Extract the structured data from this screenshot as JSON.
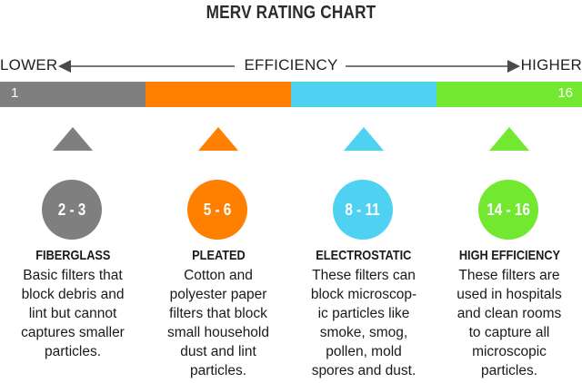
{
  "title": "MERV RATING CHART",
  "efficiency": {
    "lower_label": "LOWER",
    "center_label": "EFFICIENCY",
    "higher_label": "HIGHER"
  },
  "bar": {
    "min_label": "1",
    "max_label": "16",
    "segment_colors": [
      "#7f7f7f",
      "#ff7f00",
      "#4fd2f2",
      "#73e830"
    ]
  },
  "categories": [
    {
      "range": "2 - 3",
      "name": "FIBERGLASS",
      "color": "#7f7f7f",
      "description": [
        "Basic filters that",
        "block debris and",
        "lint but cannot",
        "captures smaller",
        "particles."
      ]
    },
    {
      "range": "5 - 6",
      "name": "PLEATED",
      "color": "#ff7f00",
      "description": [
        "Cotton and",
        "polyester paper",
        "filters that block",
        "small household",
        "dust and lint",
        "particles."
      ]
    },
    {
      "range": "8 - 11",
      "name": "ELECTROSTATIC",
      "color": "#4fd2f2",
      "description": [
        "These filters can",
        "block microscop-",
        "ic particles like",
        "smoke, smog,",
        "pollen, mold",
        "spores and dust."
      ]
    },
    {
      "range": "14 - 16",
      "name": "HIGH EFFICIENCY",
      "color": "#73e830",
      "description": [
        "These filters are",
        "used in hospitals",
        "and clean rooms",
        "to capture all",
        "microscopic",
        "particles."
      ]
    }
  ]
}
